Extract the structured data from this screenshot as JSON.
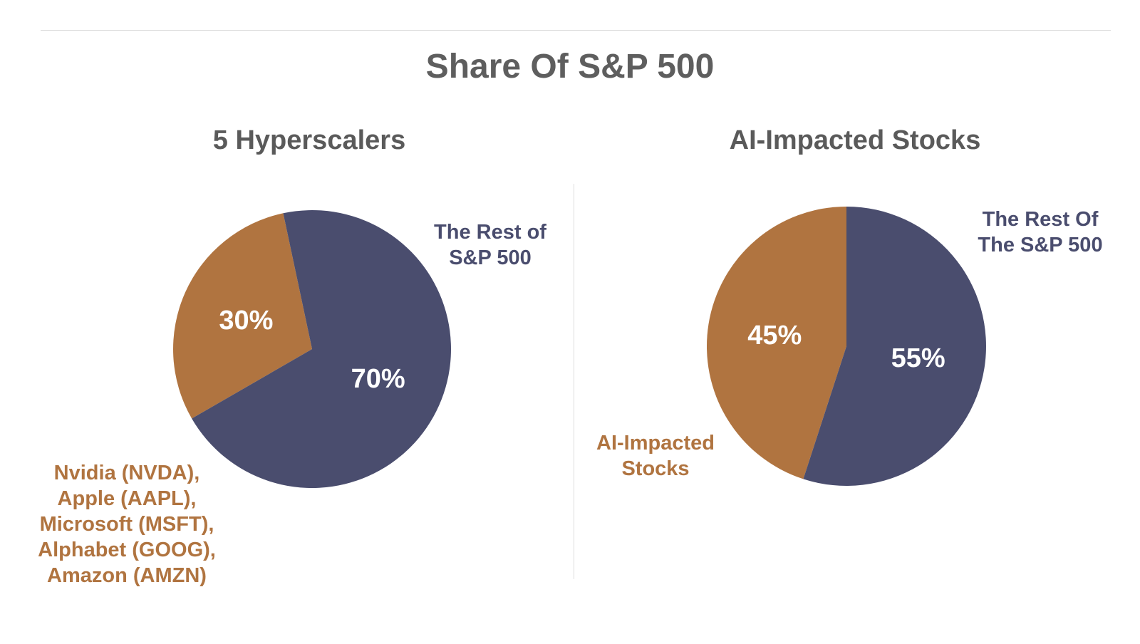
{
  "title": "Share Of S&P 500",
  "colors": {
    "rest": "#4a4d6e",
    "highlight": "#b07440",
    "title_text": "#5e5e5e",
    "subtitle_text": "#5a5a5a"
  },
  "chart_data": [
    {
      "type": "pie",
      "title": "5 Hyperscalers",
      "slices": [
        {
          "label_lines": [
            "Nvidia (NVDA),",
            "Apple (AAPL),",
            "Microsoft (MSFT),",
            "Alphabet (GOOG),",
            "Amazon (AMZN)"
          ],
          "value": 30,
          "value_label": "30%",
          "color": "#b07440"
        },
        {
          "label_lines": [
            "The Rest of",
            "S&P 500"
          ],
          "value": 70,
          "value_label": "70%",
          "color": "#4a4d6e"
        }
      ]
    },
    {
      "type": "pie",
      "title": "AI-Impacted Stocks",
      "slices": [
        {
          "label_lines": [
            "AI-Impacted",
            "Stocks"
          ],
          "value": 45,
          "value_label": "45%",
          "color": "#b07440"
        },
        {
          "label_lines": [
            "The Rest Of",
            "The S&P 500"
          ],
          "value": 55,
          "value_label": "55%",
          "color": "#4a4d6e"
        }
      ]
    }
  ]
}
